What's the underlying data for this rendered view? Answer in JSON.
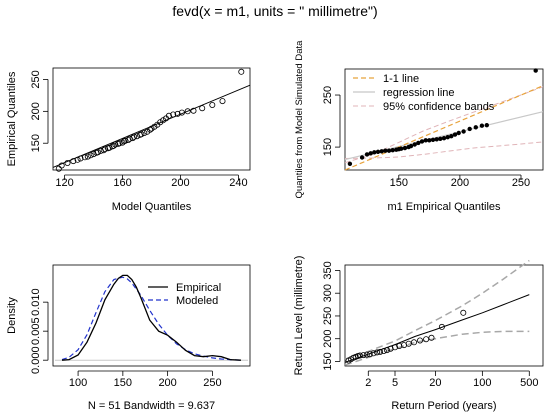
{
  "page": {
    "title": "fevd(x = m1, units = \" millimetre\")",
    "colors": {
      "ink": "#000000",
      "orange": "#e8a33c",
      "lightgray": "#c8c8c8",
      "pinkgray": "#e0b4b8",
      "blue": "#2233cc",
      "band": "#a8a8a8"
    }
  },
  "chart_data": [
    {
      "id": "qq-model",
      "type": "scatter",
      "title": "",
      "xlabel": "Model Quantiles",
      "ylabel": "Empirical Quantiles",
      "xlim": [
        112,
        248
      ],
      "ylim": [
        108,
        268
      ],
      "xticks": [
        120,
        160,
        200,
        240
      ],
      "yticks": [
        150,
        200,
        250
      ],
      "points": [
        [
          116,
          110
        ],
        [
          118,
          115
        ],
        [
          122,
          119
        ],
        [
          126,
          122
        ],
        [
          129,
          124
        ],
        [
          131,
          126
        ],
        [
          134,
          128
        ],
        [
          136,
          129
        ],
        [
          138,
          131
        ],
        [
          140,
          133
        ],
        [
          142,
          135
        ],
        [
          143,
          136
        ],
        [
          145,
          138
        ],
        [
          147,
          139
        ],
        [
          148,
          141
        ],
        [
          150,
          142
        ],
        [
          151,
          143
        ],
        [
          153,
          145
        ],
        [
          154,
          146
        ],
        [
          155,
          148
        ],
        [
          157,
          149
        ],
        [
          158,
          150
        ],
        [
          160,
          151
        ],
        [
          161,
          153
        ],
        [
          162,
          154
        ],
        [
          164,
          155
        ],
        [
          165,
          157
        ],
        [
          167,
          158
        ],
        [
          168,
          160
        ],
        [
          170,
          161
        ],
        [
          172,
          163
        ],
        [
          173,
          164
        ],
        [
          175,
          166
        ],
        [
          177,
          168
        ],
        [
          179,
          171
        ],
        [
          180,
          173
        ],
        [
          182,
          176
        ],
        [
          184,
          179
        ],
        [
          186,
          183
        ],
        [
          188,
          186
        ],
        [
          190,
          189
        ],
        [
          192,
          193
        ],
        [
          195,
          195
        ],
        [
          198,
          196
        ],
        [
          201,
          198
        ],
        [
          205,
          200
        ],
        [
          209,
          201
        ],
        [
          215,
          205
        ],
        [
          222,
          210
        ],
        [
          229,
          216
        ],
        [
          242,
          262
        ]
      ],
      "regression_line": {
        "x": [
          112,
          248
        ],
        "y": [
          112,
          241
        ]
      }
    },
    {
      "id": "qq-simulated",
      "type": "scatter",
      "title": "",
      "xlabel": "m1 Empirical Quantiles",
      "ylabel": "Quantiles from Model Simulated Data",
      "xlim": [
        106,
        268
      ],
      "ylim": [
        106,
        300
      ],
      "xticks": [
        150,
        200,
        250
      ],
      "yticks": [
        150,
        250
      ],
      "legend": {
        "position": "top-left",
        "entries": [
          "1-1 line",
          "regression line",
          "95% confidence bands"
        ]
      },
      "points": [
        [
          110,
          118
        ],
        [
          120,
          130
        ],
        [
          124,
          136
        ],
        [
          127,
          138
        ],
        [
          130,
          140
        ],
        [
          133,
          141
        ],
        [
          136,
          142
        ],
        [
          139,
          143
        ],
        [
          142,
          143
        ],
        [
          145,
          144
        ],
        [
          148,
          145
        ],
        [
          150,
          146
        ],
        [
          152,
          147
        ],
        [
          155,
          148
        ],
        [
          158,
          150
        ],
        [
          160,
          152
        ],
        [
          163,
          155
        ],
        [
          166,
          158
        ],
        [
          169,
          161
        ],
        [
          172,
          163
        ],
        [
          175,
          163
        ],
        [
          178,
          164
        ],
        [
          181,
          165
        ],
        [
          184,
          166
        ],
        [
          187,
          167
        ],
        [
          190,
          169
        ],
        [
          193,
          171
        ],
        [
          196,
          174
        ],
        [
          199,
          177
        ],
        [
          203,
          180
        ],
        [
          208,
          185
        ],
        [
          213,
          188
        ],
        [
          218,
          191
        ],
        [
          222,
          192
        ],
        [
          262,
          297
        ]
      ],
      "one_to_one": {
        "x": [
          106,
          268
        ],
        "y": [
          106,
          268
        ]
      },
      "regression_line": {
        "x": [
          106,
          268
        ],
        "y": [
          126,
          218
        ]
      },
      "band_upper": {
        "x": [
          106,
          130,
          150,
          170,
          190,
          210,
          230,
          250,
          268
        ],
        "y": [
          120,
          137,
          159,
          181,
          199,
          216,
          233,
          250,
          266
        ]
      },
      "band_lower": {
        "x": [
          106,
          130,
          150,
          170,
          190,
          210,
          230,
          250,
          268
        ],
        "y": [
          128,
          129,
          131,
          136,
          142,
          148,
          152,
          156,
          160
        ]
      }
    },
    {
      "id": "density",
      "type": "line",
      "title": "",
      "xlabel": "N = 51   Bandwidth = 9.637",
      "ylabel": "Density",
      "xlim": [
        72,
        292
      ],
      "ylim": [
        -0.001,
        0.0164
      ],
      "xticks": [
        100,
        150,
        200,
        250
      ],
      "yticks": [
        0.0,
        0.005,
        0.01
      ],
      "ytick_labels": [
        "0.000",
        "0.005",
        "0.010"
      ],
      "legend": {
        "position": "top-right",
        "entries": [
          "Empirical",
          "Modeled"
        ]
      },
      "series": [
        {
          "name": "Empirical",
          "x": [
            82,
            90,
            100,
            110,
            120,
            130,
            140,
            145,
            150,
            155,
            160,
            165,
            170,
            180,
            190,
            200,
            210,
            220,
            230,
            240,
            250,
            260,
            270,
            282
          ],
          "y": [
            0.0,
            0.0001,
            0.0009,
            0.0031,
            0.0064,
            0.0104,
            0.0131,
            0.0141,
            0.0146,
            0.0146,
            0.0139,
            0.0126,
            0.0108,
            0.0069,
            0.005,
            0.0043,
            0.0031,
            0.0017,
            0.0008,
            0.0006,
            0.0008,
            0.0006,
            0.0001,
            0.0
          ]
        },
        {
          "name": "Modeled",
          "x": [
            82,
            90,
            100,
            110,
            120,
            130,
            140,
            150,
            155,
            160,
            170,
            180,
            190,
            200,
            210,
            220,
            230,
            240,
            250,
            260,
            270,
            282
          ],
          "y": [
            0.0001,
            0.0005,
            0.0018,
            0.0044,
            0.0082,
            0.0118,
            0.0139,
            0.0143,
            0.014,
            0.0133,
            0.0112,
            0.0086,
            0.0062,
            0.0043,
            0.0028,
            0.0018,
            0.0011,
            0.0007,
            0.0004,
            0.0002,
            0.0001,
            0.0
          ]
        }
      ]
    },
    {
      "id": "return-level",
      "type": "scatter",
      "title": "",
      "xlabel": "Return Period (years)",
      "ylabel": "Return Level (millimetre)",
      "xscale": "log",
      "xlim": [
        0.9,
        800
      ],
      "ylim": [
        140,
        362
      ],
      "xticks": [
        2,
        5,
        20,
        100,
        500
      ],
      "xtick_labels": [
        "2",
        "5",
        "20",
        "100",
        "500"
      ],
      "yticks": [
        150,
        200,
        250,
        300,
        350
      ],
      "points": [
        [
          1.02,
          152
        ],
        [
          1.1,
          155
        ],
        [
          1.2,
          158
        ],
        [
          1.3,
          160
        ],
        [
          1.4,
          162
        ],
        [
          1.5,
          163
        ],
        [
          1.7,
          164
        ],
        [
          1.9,
          165
        ],
        [
          2.1,
          166
        ],
        [
          2.4,
          168
        ],
        [
          2.7,
          170
        ],
        [
          3.0,
          171
        ],
        [
          3.4,
          173
        ],
        [
          3.8,
          175
        ],
        [
          4.3,
          178
        ],
        [
          5.0,
          181
        ],
        [
          5.8,
          184
        ],
        [
          6.8,
          186
        ],
        [
          8.0,
          189
        ],
        [
          9.6,
          192
        ],
        [
          11.8,
          196
        ],
        [
          14.5,
          199
        ],
        [
          17.5,
          202
        ],
        [
          25,
          226
        ],
        [
          52,
          257
        ]
      ],
      "return_level_curve": {
        "x": [
          0.9,
          2,
          5,
          10,
          20,
          50,
          100,
          200,
          500
        ],
        "y": [
          148,
          166,
          187,
          205,
          220,
          241,
          257,
          274,
          297
        ]
      },
      "ci_upper": {
        "x": [
          0.9,
          2,
          5,
          10,
          20,
          50,
          100,
          200,
          500
        ],
        "y": [
          155,
          172,
          195,
          218,
          240,
          272,
          300,
          330,
          372
        ]
      },
      "ci_lower": {
        "x": [
          0.9,
          2,
          5,
          10,
          20,
          50,
          100,
          200,
          500
        ],
        "y": [
          142,
          159,
          178,
          192,
          200,
          210,
          214,
          216,
          216
        ]
      }
    }
  ]
}
